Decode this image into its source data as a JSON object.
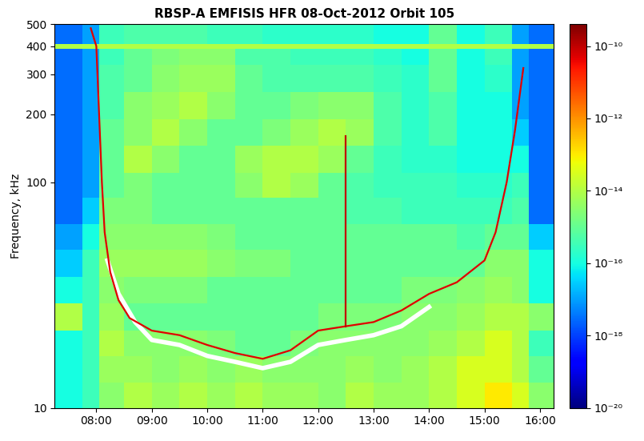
{
  "chart_data": {
    "type": "heatmap",
    "title": "RBSP-A EMFISIS HFR 08-Oct-2012 Orbit 105",
    "ylabel": "Frequency, kHz",
    "log": "y",
    "xlim": [
      7.25,
      16.25
    ],
    "ylim": [
      10,
      500
    ],
    "xticks": [
      {
        "value": 8,
        "label": "08:00"
      },
      {
        "value": 9,
        "label": "09:00"
      },
      {
        "value": 10,
        "label": "10:00"
      },
      {
        "value": 11,
        "label": "11:00"
      },
      {
        "value": 12,
        "label": "12:00"
      },
      {
        "value": 13,
        "label": "13:00"
      },
      {
        "value": 14,
        "label": "14:00"
      },
      {
        "value": 15,
        "label": "15:00"
      },
      {
        "value": 16,
        "label": "16:00"
      }
    ],
    "yticks": [
      10,
      100,
      200,
      300,
      400,
      500
    ],
    "x_edges": [
      7.25,
      7.75,
      8.05,
      8.5,
      9.0,
      9.5,
      10.0,
      10.5,
      11.0,
      11.5,
      12.0,
      12.5,
      13.0,
      13.5,
      14.0,
      14.5,
      15.0,
      15.5,
      15.8,
      16.25
    ],
    "y_edges": [
      10,
      13,
      17,
      22,
      29,
      38,
      50,
      65,
      85,
      110,
      145,
      190,
      250,
      330,
      390,
      410,
      500
    ],
    "cells": [
      [
        1e-16,
        3e-16,
        3e-15,
        1e-14,
        5e-15,
        1e-14,
        5e-15,
        1e-14,
        5e-15,
        5e-15,
        3e-15,
        1e-14,
        5e-15,
        5e-15,
        1e-14,
        3e-14,
        1e-13,
        3e-14,
        3e-15
      ],
      [
        1e-16,
        3e-16,
        5e-15,
        5e-15,
        3e-15,
        5e-15,
        3e-15,
        5e-15,
        3e-15,
        3e-15,
        3e-15,
        5e-15,
        3e-15,
        5e-15,
        1e-14,
        3e-14,
        3e-14,
        1e-14,
        1e-15
      ],
      [
        1e-16,
        3e-16,
        1e-14,
        3e-15,
        3e-15,
        3e-15,
        2e-15,
        1e-15,
        1e-15,
        2e-15,
        3e-15,
        3e-15,
        3e-15,
        3e-15,
        5e-15,
        1e-14,
        3e-14,
        1e-14,
        3e-16
      ],
      [
        1e-14,
        3e-16,
        5e-15,
        1e-15,
        1e-15,
        1e-15,
        1e-15,
        1e-15,
        1e-15,
        1e-15,
        2e-15,
        2e-15,
        2e-15,
        3e-15,
        3e-15,
        5e-15,
        1e-14,
        1e-14,
        3e-15
      ],
      [
        1e-16,
        3e-16,
        3e-15,
        2e-15,
        2e-15,
        2e-15,
        1e-15,
        1e-15,
        1e-15,
        1e-15,
        1e-15,
        1e-15,
        1e-15,
        2e-15,
        2e-15,
        3e-15,
        5e-15,
        3e-15,
        1e-16
      ],
      [
        3e-17,
        3e-16,
        5e-15,
        5e-15,
        5e-15,
        5e-15,
        3e-15,
        2e-15,
        2e-15,
        1e-15,
        1e-15,
        1e-15,
        1e-15,
        1e-15,
        1e-15,
        1e-15,
        3e-15,
        3e-15,
        1e-16
      ],
      [
        1e-17,
        1e-16,
        3e-15,
        3e-15,
        3e-15,
        3e-15,
        2e-15,
        1e-15,
        1e-15,
        1e-15,
        1e-15,
        1e-15,
        1e-15,
        1e-15,
        1e-15,
        5e-16,
        1e-15,
        1e-15,
        3e-17
      ],
      [
        3e-18,
        3e-17,
        2e-15,
        2e-15,
        1e-15,
        1e-15,
        1e-15,
        1e-15,
        1e-15,
        1e-15,
        1e-15,
        5e-16,
        5e-16,
        3e-16,
        3e-16,
        3e-16,
        3e-16,
        5e-16,
        3e-18
      ],
      [
        3e-18,
        1e-17,
        1e-15,
        2e-15,
        1e-15,
        1e-15,
        1e-15,
        3e-15,
        1e-14,
        5e-15,
        1e-15,
        5e-16,
        3e-16,
        3e-16,
        3e-16,
        2e-16,
        2e-16,
        3e-16,
        3e-18
      ],
      [
        3e-18,
        1e-17,
        1e-15,
        1e-14,
        3e-15,
        1e-15,
        1e-15,
        5e-15,
        1e-14,
        1e-14,
        5e-15,
        1e-15,
        3e-16,
        2e-16,
        2e-16,
        1e-16,
        1e-16,
        1e-16,
        3e-18
      ],
      [
        3e-18,
        1e-17,
        1e-15,
        3e-15,
        1e-14,
        3e-15,
        1e-15,
        1e-15,
        2e-15,
        5e-15,
        1e-14,
        5e-15,
        5e-16,
        2e-16,
        5e-16,
        1e-16,
        1e-16,
        3e-17,
        3e-18
      ],
      [
        3e-18,
        1e-17,
        5e-16,
        3e-15,
        5e-15,
        1e-14,
        3e-15,
        1e-15,
        1e-15,
        2e-15,
        3e-15,
        3e-15,
        5e-16,
        2e-16,
        5e-16,
        1e-16,
        1e-16,
        1e-17,
        3e-18
      ],
      [
        3e-18,
        1e-17,
        5e-16,
        1e-15,
        3e-15,
        5e-15,
        5e-15,
        1e-15,
        5e-16,
        5e-16,
        5e-16,
        5e-16,
        3e-16,
        2e-16,
        1e-15,
        1e-16,
        2e-16,
        1e-17,
        3e-18
      ],
      [
        3e-18,
        1e-17,
        3e-16,
        1e-15,
        2e-15,
        3e-15,
        3e-15,
        5e-16,
        5e-16,
        3e-16,
        3e-16,
        3e-16,
        2e-16,
        1e-16,
        1e-15,
        1e-16,
        3e-16,
        1e-17,
        3e-18
      ],
      [
        1e-14,
        1e-14,
        1e-14,
        1e-14,
        1e-14,
        1e-14,
        1e-14,
        1e-14,
        1e-14,
        1e-14,
        1e-14,
        1e-14,
        1e-14,
        1e-14,
        1e-14,
        1e-14,
        1e-14,
        1e-14,
        1e-14
      ],
      [
        3e-18,
        1e-17,
        3e-16,
        5e-16,
        5e-16,
        5e-16,
        3e-16,
        3e-16,
        2e-16,
        2e-16,
        2e-16,
        2e-16,
        1e-16,
        1e-16,
        1e-15,
        1e-16,
        3e-16,
        1e-17,
        3e-18
      ]
    ],
    "colorbar_range": [
      1e-20,
      4e-10
    ],
    "colorbar_ticks": [
      {
        "value": 1e-20,
        "label": "10⁻²⁰"
      },
      {
        "value": 1e-18,
        "label": "10⁻¹⁸"
      },
      {
        "value": 1e-16,
        "label": "10⁻¹⁶"
      },
      {
        "value": 1e-14,
        "label": "10⁻¹⁴"
      },
      {
        "value": 1e-12,
        "label": "10⁻¹²"
      },
      {
        "value": 1e-10,
        "label": "10⁻¹⁰"
      }
    ],
    "series": [
      {
        "type": "line",
        "color": "#ffffff",
        "x": [
          8.2,
          8.4,
          8.7,
          9.0,
          9.5,
          10.0,
          10.5,
          11.0,
          11.5,
          12.0,
          12.5,
          13.0,
          13.5,
          14.0
        ],
        "values": [
          45,
          32,
          24,
          20,
          19,
          17,
          16,
          15,
          16,
          19,
          20,
          21,
          23,
          28
        ]
      },
      {
        "type": "line",
        "color": "#e00000",
        "x": [
          7.9,
          8.0,
          8.05,
          8.1,
          8.15,
          8.25,
          8.4,
          8.6,
          9.0,
          9.5,
          10.0,
          10.5,
          11.0,
          11.5,
          12.0,
          12.5,
          13.0,
          13.5,
          14.0,
          14.5,
          15.0,
          15.2,
          15.4,
          15.55,
          15.7
        ],
        "values": [
          480,
          400,
          200,
          100,
          60,
          40,
          30,
          25,
          22,
          21,
          19,
          17.5,
          16.5,
          18,
          22,
          23,
          24,
          27,
          32,
          36,
          45,
          60,
          100,
          170,
          320
        ]
      },
      {
        "type": "line",
        "color": "#c00000",
        "x": [
          12.5,
          12.5
        ],
        "values": [
          23,
          160
        ]
      }
    ]
  }
}
